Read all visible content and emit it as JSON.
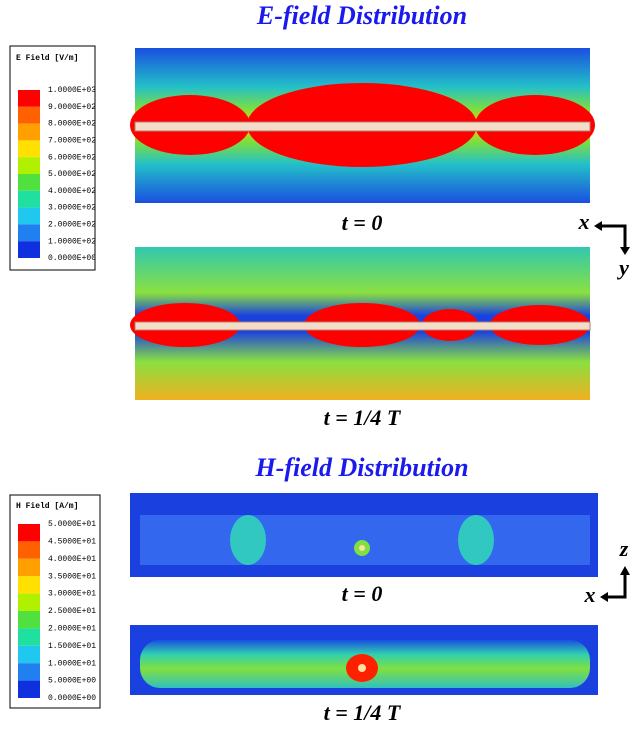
{
  "e_field": {
    "title": "E-field Distribution",
    "legend_title": "E Field [V/m]",
    "legend_labels": [
      "1.0000E+03",
      "9.0000E+02",
      "8.0000E+02",
      "7.0000E+02",
      "6.0000E+02",
      "5.0000E+02",
      "4.0000E+02",
      "3.0000E+02",
      "2.0000E+02",
      "1.0000E+02",
      "0.0000E+00"
    ],
    "captions": [
      "t = 0",
      "t = 1/4 T"
    ],
    "axes": [
      "x",
      "y"
    ]
  },
  "h_field": {
    "title": "H-field Distribution",
    "legend_title": "H Field [A/m]",
    "legend_labels": [
      "5.0000E+01",
      "4.5000E+01",
      "4.0000E+01",
      "3.5000E+01",
      "3.0000E+01",
      "2.5000E+01",
      "2.0000E+01",
      "1.5000E+01",
      "1.0000E+01",
      "5.0000E+00",
      "0.0000E+00"
    ],
    "captions": [
      "t = 0",
      "t = 1/4 T"
    ],
    "axes": [
      "z",
      "x"
    ]
  }
}
